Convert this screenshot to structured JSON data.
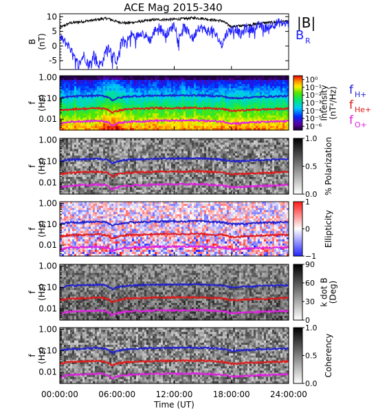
{
  "title": "ACE Mag 2015-340",
  "chart_data": [
    {
      "type": "line",
      "ylabel": "B\n(nT)",
      "ylabel_lines": [
        "B",
        "(nT)"
      ],
      "ylim": [
        -8,
        11
      ],
      "yticks": [
        -5,
        0,
        5,
        10
      ],
      "ytick_labels": [
        "-5",
        "0",
        "5",
        "10"
      ],
      "xlim_hours": [
        0,
        24
      ],
      "legend": [
        {
          "label": "|B|",
          "color": "#000000"
        },
        {
          "label": "B",
          "sub": "R",
          "color": "#1f1fff"
        }
      ],
      "series": [
        {
          "name": "|B|",
          "color": "#000000",
          "x": [
            0,
            1,
            2,
            3,
            4,
            4.5,
            5,
            6,
            7,
            8,
            9,
            10,
            11,
            12,
            13,
            14,
            15,
            16,
            17,
            18,
            19,
            20,
            21,
            22,
            23,
            24
          ],
          "y": [
            6.2,
            7.8,
            8.2,
            8.6,
            9.0,
            9.3,
            9.4,
            8.3,
            7.8,
            8.2,
            8.6,
            9.0,
            9.0,
            9.1,
            9.3,
            9.6,
            9.4,
            8.9,
            8.6,
            6.6,
            6.9,
            7.2,
            7.8,
            8.0,
            8.2,
            8.4
          ]
        },
        {
          "name": "B_R",
          "color": "#1f1fff",
          "x": [
            0,
            0.5,
            1,
            1.5,
            2,
            2.5,
            3,
            3.3,
            3.6,
            4,
            4.5,
            5,
            5.5,
            6,
            6.5,
            7,
            7.5,
            8,
            8.5,
            9,
            9.5,
            10,
            10.5,
            11,
            11.5,
            12,
            12.5,
            13,
            13.5,
            14,
            14.5,
            15,
            15.5,
            16,
            16.5,
            17,
            17.5,
            18,
            18.5,
            19,
            19.5,
            20,
            20.5,
            21,
            21.5,
            22,
            22.5,
            23,
            23.5,
            24
          ],
          "y": [
            3.0,
            1.5,
            0.0,
            -4.0,
            -6.5,
            -3.0,
            -6.0,
            -5.8,
            -2.0,
            -6.5,
            -5.5,
            0.5,
            -2.5,
            -5.5,
            2.0,
            1.5,
            4.0,
            3.0,
            5.0,
            3.5,
            2.0,
            5.5,
            6.5,
            4.0,
            5.0,
            7.5,
            3.0,
            6.5,
            4.5,
            2.5,
            6.5,
            6.0,
            5.0,
            5.5,
            3.0,
            0.5,
            4.5,
            5.5,
            6.0,
            3.5,
            6.5,
            5.5,
            6.5,
            7.0,
            6.0,
            7.0,
            7.5,
            8.0,
            7.5,
            7.8
          ]
        }
      ]
    },
    {
      "type": "heatmap",
      "ylabel_lines": [
        "f",
        "(Hz)"
      ],
      "scale": "log",
      "ylim": [
        0.003,
        1.2
      ],
      "yticks": [
        0.01,
        0.1,
        1.0
      ],
      "ytick_labels": [
        "0.01",
        "0.10",
        "1.00"
      ],
      "xlim_hours": [
        0,
        24
      ],
      "colormap": "rainbow",
      "colorbar": {
        "label": "Intensity (nT²/Hz)",
        "label_lines": [
          "Intensity",
          "(nT²/Hz)"
        ],
        "ticks": [
          "10⁰",
          "10⁻¹",
          "10⁻²",
          "10⁻³",
          "10⁻⁴",
          "10⁻⁵",
          "10⁻⁶"
        ],
        "tick_values": [
          0,
          -1,
          -2,
          -3,
          -4,
          -5,
          -6
        ],
        "range": [
          -6.5,
          0.5
        ]
      },
      "legend": [
        {
          "label": "f",
          "sub": "H+",
          "color": "#1f1fcf"
        },
        {
          "label": "f",
          "sub": "He+",
          "color": "#e01a1a"
        },
        {
          "label": "f",
          "sub": "O+",
          "color": "#e020e0"
        }
      ]
    },
    {
      "type": "heatmap",
      "ylabel_lines": [
        "f",
        "(Hz)"
      ],
      "scale": "log",
      "ylim": [
        0.003,
        1.2
      ],
      "yticks": [
        0.01,
        0.1,
        1.0
      ],
      "ytick_labels": [
        "0.01",
        "0.10",
        "1.00"
      ],
      "xlim_hours": [
        0,
        24
      ],
      "colormap": "gray_reversed",
      "colorbar": {
        "label": "% Polarization",
        "label_lines": [
          "% Polarization"
        ],
        "ticks": [
          "0.0",
          "0.5",
          "1.0"
        ],
        "tick_values": [
          0.0,
          0.5,
          1.0
        ],
        "range": [
          0,
          1
        ]
      }
    },
    {
      "type": "heatmap",
      "ylabel_lines": [
        "f",
        "(Hz)"
      ],
      "scale": "log",
      "ylim": [
        0.003,
        1.2
      ],
      "yticks": [
        0.01,
        0.1,
        1.0
      ],
      "ytick_labels": [
        "0.01",
        "0.10",
        "1.00"
      ],
      "xlim_hours": [
        0,
        24
      ],
      "colormap": "bwr",
      "colorbar": {
        "label": "Ellipticity",
        "label_lines": [
          "Ellipticity"
        ],
        "ticks": [
          "1",
          "0",
          "−1"
        ],
        "tick_values": [
          1,
          0,
          -1
        ],
        "range": [
          -1,
          1
        ]
      }
    },
    {
      "type": "heatmap",
      "ylabel_lines": [
        "f",
        "(Hz)"
      ],
      "scale": "log",
      "ylim": [
        0.003,
        1.2
      ],
      "yticks": [
        0.01,
        0.1,
        1.0
      ],
      "ytick_labels": [
        "0.01",
        "0.10",
        "1.00"
      ],
      "xlim_hours": [
        0,
        24
      ],
      "colormap": "gray_reversed",
      "colorbar": {
        "label": "k dot B (Deg)",
        "label_lines": [
          "k dot B",
          "(Deg)"
        ],
        "ticks": [
          "90",
          "60",
          "30",
          "0"
        ],
        "tick_values": [
          90,
          60,
          30,
          0
        ],
        "range": [
          0,
          90
        ]
      }
    },
    {
      "type": "heatmap",
      "ylabel_lines": [
        "f",
        "(Hz)"
      ],
      "scale": "log",
      "ylim": [
        0.003,
        1.2
      ],
      "yticks": [
        0.01,
        0.1,
        1.0
      ],
      "ytick_labels": [
        "0.01",
        "0.10",
        "1.00"
      ],
      "xlim_hours": [
        0,
        24
      ],
      "colormap": "gray_reversed",
      "colorbar": {
        "label": "Coherency",
        "label_lines": [
          "Coherency"
        ],
        "ticks": [
          "1.0",
          "0.5",
          "0.0"
        ],
        "tick_values": [
          1.0,
          0.5,
          0.0
        ],
        "range": [
          0,
          1
        ]
      }
    }
  ],
  "ion_cyclotron_lines": {
    "x": [
      0,
      1,
      2,
      3,
      4,
      5,
      5.5,
      6,
      7,
      8,
      9,
      10,
      11,
      12,
      13,
      14,
      15,
      16,
      17,
      18,
      19,
      20,
      21,
      22,
      23,
      24
    ],
    "f_H": [
      0.1,
      0.12,
      0.125,
      0.13,
      0.135,
      0.12,
      0.08,
      0.1,
      0.12,
      0.125,
      0.13,
      0.135,
      0.135,
      0.136,
      0.137,
      0.14,
      0.138,
      0.13,
      0.125,
      0.1,
      0.105,
      0.11,
      0.118,
      0.12,
      0.125,
      0.128
    ],
    "f_He": [
      0.025,
      0.03,
      0.031,
      0.032,
      0.034,
      0.03,
      0.02,
      0.025,
      0.03,
      0.031,
      0.032,
      0.034,
      0.034,
      0.034,
      0.034,
      0.035,
      0.034,
      0.032,
      0.031,
      0.025,
      0.026,
      0.028,
      0.029,
      0.03,
      0.031,
      0.032
    ],
    "f_O": [
      0.006,
      0.0075,
      0.0078,
      0.008,
      0.0085,
      0.0075,
      0.005,
      0.0063,
      0.0075,
      0.0078,
      0.008,
      0.0085,
      0.0085,
      0.0085,
      0.0086,
      0.0088,
      0.0086,
      0.008,
      0.0078,
      0.0063,
      0.0065,
      0.007,
      0.0073,
      0.0075,
      0.0078,
      0.008
    ]
  },
  "x_axis": {
    "ticks_hours": [
      0,
      6,
      12,
      18,
      24
    ],
    "tick_labels": [
      "00:00:00",
      "06:00:00",
      "12:00:00",
      "18:00:00",
      "24:00:00"
    ],
    "label": "Time (UT)"
  },
  "colors": {
    "f_H": "#1f1fcf",
    "f_He": "#e01a1a",
    "f_O": "#e020e0",
    "B_total": "#000000",
    "B_R": "#1f1fff"
  }
}
